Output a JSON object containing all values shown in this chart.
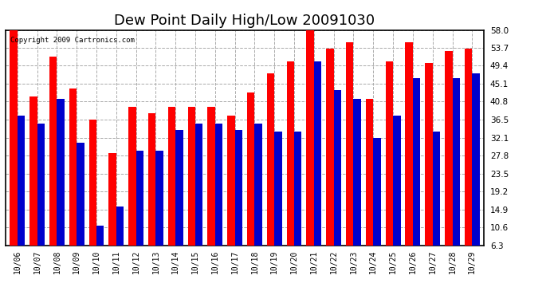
{
  "title": "Dew Point Daily High/Low 20091030",
  "copyright": "Copyright 2009 Cartronics.com",
  "dates": [
    "10/06",
    "10/07",
    "10/08",
    "10/09",
    "10/10",
    "10/11",
    "10/12",
    "10/13",
    "10/14",
    "10/15",
    "10/16",
    "10/17",
    "10/18",
    "10/19",
    "10/20",
    "10/21",
    "10/22",
    "10/23",
    "10/24",
    "10/25",
    "10/26",
    "10/27",
    "10/28",
    "10/29"
  ],
  "highs": [
    58.0,
    42.0,
    51.5,
    44.0,
    36.5,
    28.5,
    39.5,
    38.0,
    39.5,
    39.5,
    39.5,
    37.5,
    43.0,
    47.5,
    50.5,
    58.0,
    53.5,
    55.0,
    41.5,
    50.5,
    55.0,
    50.0,
    53.0,
    53.5
  ],
  "lows": [
    37.5,
    35.5,
    41.5,
    31.0,
    11.0,
    15.5,
    29.0,
    29.0,
    34.0,
    35.5,
    35.5,
    34.0,
    35.5,
    33.5,
    33.5,
    50.5,
    43.5,
    41.5,
    32.0,
    37.5,
    46.5,
    33.5,
    46.5,
    47.5
  ],
  "high_color": "#ff0000",
  "low_color": "#0000cc",
  "bg_color": "#ffffff",
  "grid_color": "#aaaaaa",
  "title_fontsize": 13,
  "yticks": [
    6.3,
    10.6,
    14.9,
    19.2,
    23.5,
    27.8,
    32.1,
    36.5,
    40.8,
    45.1,
    49.4,
    53.7,
    58.0
  ],
  "ymin": 6.3,
  "ymax": 58.0,
  "bar_width": 0.38,
  "figwidth": 6.9,
  "figheight": 3.75,
  "dpi": 100
}
